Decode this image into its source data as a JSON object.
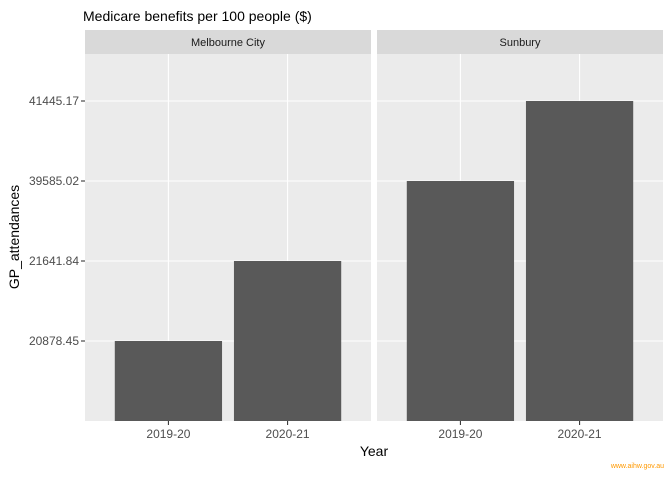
{
  "chart_data": {
    "type": "bar",
    "title": "Medicare benefits per 100 people ($)",
    "xlabel": "Year",
    "ylabel": "GP_attendances",
    "categories": [
      "2019-20",
      "2020-21"
    ],
    "y_tick_labels": [
      "20878.45",
      "21641.84",
      "39585.02",
      "41445.17"
    ],
    "y_scale": "discrete (ordered by value)",
    "facets": [
      {
        "name": "Melbourne City",
        "values": [
          20878.45,
          21641.84
        ]
      },
      {
        "name": "Sunbury",
        "values": [
          39585.02,
          41445.17
        ]
      }
    ],
    "grid": true,
    "legend": "none",
    "colors": {
      "bar": "#595959",
      "panel": "#ebebeb",
      "strip": "#d9d9d9",
      "grid": "#ffffff"
    }
  },
  "source_label": "www.aihw.gov.au"
}
